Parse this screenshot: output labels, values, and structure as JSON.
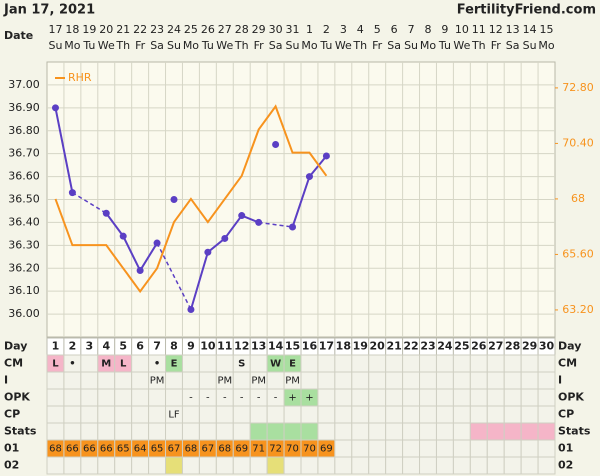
{
  "header": {
    "date": "Jan 17, 2021",
    "site": "FertilityFriend.com"
  },
  "chart_data": {
    "type": "line",
    "x_label": "Date",
    "categories": [
      "17",
      "18",
      "19",
      "20",
      "21",
      "22",
      "23",
      "24",
      "25",
      "26",
      "27",
      "28",
      "29",
      "30",
      "31",
      "1",
      "2",
      "3",
      "4",
      "5",
      "6",
      "7",
      "8",
      "9",
      "10",
      "11",
      "12",
      "13",
      "14",
      "15"
    ],
    "weekdays": [
      "Su",
      "Mo",
      "Tu",
      "We",
      "Th",
      "Fr",
      "Sa",
      "Su",
      "Mo",
      "Tu",
      "We",
      "Th",
      "Fr",
      "Sa",
      "Su",
      "Mo",
      "Tu",
      "We",
      "Th",
      "Fr",
      "Sa",
      "Su",
      "Mo",
      "Tu",
      "We",
      "Th",
      "Fr",
      "Sa",
      "Su",
      "Mo"
    ],
    "ylim": [
      35.9,
      37.1
    ],
    "yticks": [
      {
        "value": 37,
        "label": "37.00"
      },
      {
        "value": 36.9,
        "label": "36.90"
      },
      {
        "value": 36.8,
        "label": "36.80"
      },
      {
        "value": 36.7,
        "label": "36.70"
      },
      {
        "value": 36.6,
        "label": "36.60"
      },
      {
        "value": 36.5,
        "label": "36.50"
      },
      {
        "value": 36.4,
        "label": "36.40"
      },
      {
        "value": 36.3,
        "label": "36.30"
      },
      {
        "value": 36.2,
        "label": "36.20"
      },
      {
        "value": 36.1,
        "label": "36.10"
      },
      {
        "value": 36,
        "label": "36.00"
      }
    ],
    "y2lim": [
      62.03,
      73.92
    ],
    "y2ticks": [
      {
        "value": 72.8,
        "label": "72.80"
      },
      {
        "value": 70.4,
        "label": "70.40"
      },
      68,
      {
        "value": 65.6,
        "label": "65.60"
      },
      {
        "value": 63.2,
        "label": "63.20"
      }
    ],
    "grid": true,
    "legend": "upper left",
    "series": [
      {
        "color": "#5b3fc4",
        "markers": true,
        "connect_gaps": "dashed",
        "values": [
          36.9,
          36.53,
          null,
          36.44,
          36.34,
          36.19,
          36.31,
          null,
          36.02,
          36.27,
          36.33,
          36.43,
          36.4,
          null,
          36.38,
          36.6,
          36.69,
          null,
          null,
          null,
          null,
          null,
          null,
          null,
          null,
          null,
          null,
          null,
          null,
          null
        ]
      },
      {
        "color": "#5b3fc4",
        "markers": true,
        "line": false,
        "values": [
          null,
          null,
          null,
          null,
          null,
          null,
          null,
          36.5,
          null,
          null,
          null,
          null,
          null,
          36.74,
          null,
          null,
          null,
          null,
          null,
          null,
          null,
          null,
          null,
          null,
          null,
          null,
          null,
          null,
          null,
          null
        ]
      },
      {
        "name": "RHR",
        "color": "#f7931e",
        "axis": "y2",
        "values": [
          68,
          66,
          66,
          66,
          65,
          64,
          65,
          67,
          68,
          67,
          68,
          69,
          71,
          72,
          70,
          70,
          69,
          null,
          null,
          null,
          null,
          null,
          null,
          null,
          null,
          null,
          null,
          null,
          null,
          null
        ]
      }
    ]
  },
  "table": {
    "row_labels": [
      "Day",
      "CM",
      "I",
      "OPK",
      "CP",
      "Stats",
      "01",
      "02"
    ],
    "days": [
      1,
      2,
      3,
      4,
      5,
      6,
      7,
      8,
      9,
      10,
      11,
      12,
      13,
      14,
      15,
      16,
      17,
      18,
      19,
      20,
      21,
      22,
      23,
      24,
      25,
      26,
      27,
      28,
      29,
      30
    ],
    "rows": [
      [
        {
          "text": "L",
          "color": "#f5b5c8"
        },
        {
          "text": "•"
        },
        null,
        {
          "text": "M",
          "color": "#f5b5c8"
        },
        {
          "text": "L",
          "color": "#f5b5c8"
        },
        null,
        {
          "text": "•"
        },
        {
          "text": "E",
          "color": "#a9dfa0"
        },
        null,
        null,
        null,
        {
          "text": "S"
        },
        null,
        {
          "text": "W",
          "color": "#a9dfa0"
        },
        {
          "text": "E",
          "color": "#a9dfa0"
        },
        null,
        null,
        null,
        null,
        null,
        null,
        null,
        null,
        null,
        null,
        null,
        null,
        null,
        null,
        null
      ],
      [
        null,
        null,
        null,
        null,
        null,
        null,
        {
          "text": "PM"
        },
        null,
        null,
        null,
        {
          "text": "PM"
        },
        null,
        {
          "text": "PM"
        },
        null,
        {
          "text": "PM"
        },
        null,
        null,
        null,
        null,
        null,
        null,
        null,
        null,
        null,
        null,
        null,
        null,
        null,
        null,
        null
      ],
      [
        null,
        null,
        null,
        null,
        null,
        null,
        null,
        null,
        {
          "text": "-"
        },
        {
          "text": "-"
        },
        {
          "text": "-"
        },
        {
          "text": "-"
        },
        {
          "text": "-"
        },
        {
          "text": "-"
        },
        {
          "text": "+",
          "color": "#a9dfa0"
        },
        {
          "text": "+",
          "color": "#a9dfa0"
        },
        null,
        null,
        null,
        null,
        null,
        null,
        null,
        null,
        null,
        null,
        null,
        null,
        null,
        null
      ],
      [
        null,
        null,
        null,
        null,
        null,
        null,
        null,
        {
          "text": "LF"
        },
        null,
        null,
        null,
        null,
        null,
        null,
        null,
        null,
        null,
        null,
        null,
        null,
        null,
        null,
        null,
        null,
        null,
        null,
        null,
        null,
        null,
        null
      ],
      [
        null,
        null,
        null,
        null,
        null,
        null,
        null,
        null,
        null,
        null,
        null,
        null,
        {
          "color": "#a9dfa0"
        },
        {
          "color": "#a9dfa0"
        },
        {
          "color": "#a9dfa0"
        },
        {
          "color": "#a9dfa0"
        },
        null,
        null,
        null,
        null,
        null,
        null,
        null,
        null,
        null,
        {
          "color": "#f5b5c8"
        },
        {
          "color": "#f5b5c8"
        },
        {
          "color": "#f5b5c8"
        },
        {
          "color": "#f5b5c8"
        },
        {
          "color": "#f5b5c8"
        }
      ],
      [
        {
          "text": 68,
          "color": "#f7931e"
        },
        {
          "text": 66,
          "color": "#f7931e"
        },
        {
          "text": 66,
          "color": "#f7931e"
        },
        {
          "text": 66,
          "color": "#f7931e"
        },
        {
          "text": 65,
          "color": "#f7931e"
        },
        {
          "text": 64,
          "color": "#f7931e"
        },
        {
          "text": 65,
          "color": "#f7931e"
        },
        {
          "text": 67,
          "color": "#f7931e"
        },
        {
          "text": 68,
          "color": "#f7931e"
        },
        {
          "text": 67,
          "color": "#f7931e"
        },
        {
          "text": 68,
          "color": "#f7931e"
        },
        {
          "text": 69,
          "color": "#f7931e"
        },
        {
          "text": 71,
          "color": "#f7931e"
        },
        {
          "text": 72,
          "color": "#f7931e"
        },
        {
          "text": 70,
          "color": "#f7931e"
        },
        {
          "text": 70,
          "color": "#f7931e"
        },
        {
          "text": 69,
          "color": "#f7931e"
        },
        null,
        null,
        null,
        null,
        null,
        null,
        null,
        null,
        null,
        null,
        null,
        null,
        null
      ],
      [
        null,
        null,
        null,
        null,
        null,
        null,
        null,
        {
          "color": "#e6df78"
        },
        null,
        null,
        null,
        null,
        null,
        {
          "color": "#e6df78"
        },
        null,
        null,
        null,
        null,
        null,
        null,
        null,
        null,
        null,
        null,
        null,
        null,
        null,
        null,
        null,
        null
      ]
    ]
  }
}
